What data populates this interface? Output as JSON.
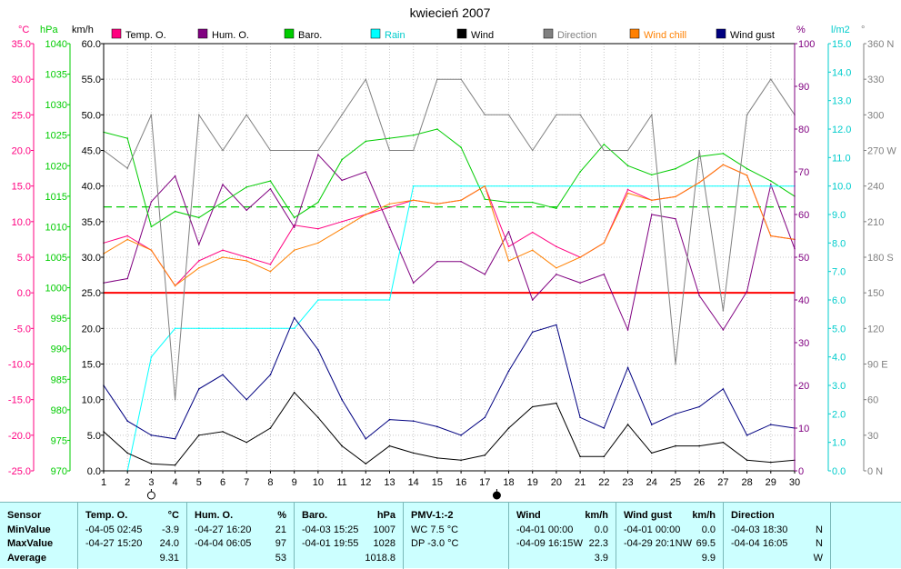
{
  "chart_data": {
    "type": "line",
    "title": "kwiecień 2007",
    "x": [
      1,
      2,
      3,
      4,
      5,
      6,
      7,
      8,
      9,
      10,
      11,
      12,
      13,
      14,
      15,
      16,
      17,
      18,
      19,
      20,
      21,
      22,
      23,
      24,
      25,
      26,
      27,
      28,
      29,
      30
    ],
    "axes": {
      "temp": {
        "label": "°C",
        "ticks": [
          "35.0",
          "30.0",
          "25.0",
          "20.0",
          "15.0",
          "10.0",
          "5.0",
          "0.0",
          "-5.0",
          "-10.0",
          "-15.0",
          "-20.0",
          "-25.0"
        ],
        "ylim": [
          -25,
          35
        ]
      },
      "baro": {
        "label": "hPa",
        "ticks": [
          "1040",
          "1035",
          "1030",
          "1025",
          "1020",
          "1015",
          "1010",
          "1005",
          "1000",
          "995",
          "990",
          "985",
          "980",
          "975",
          "970"
        ],
        "ylim": [
          970,
          1040
        ]
      },
      "wind": {
        "label": "km/h",
        "ticks": [
          "60.0",
          "55.0",
          "50.0",
          "45.0",
          "40.0",
          "35.0",
          "30.0",
          "25.0",
          "20.0",
          "15.0",
          "10.0",
          "5.0",
          "0.0"
        ],
        "ylim": [
          0,
          60
        ]
      },
      "hum": {
        "label": "%",
        "ticks": [
          "100",
          "90",
          "80",
          "70",
          "60",
          "50",
          "40",
          "30",
          "20",
          "10",
          "0"
        ],
        "ylim": [
          0,
          100
        ]
      },
      "rain": {
        "label": "l/m2",
        "ticks": [
          "15.0",
          "14.0",
          "13.0",
          "12.0",
          "11.0",
          "10.0",
          "9.0",
          "8.0",
          "7.0",
          "6.0",
          "5.0",
          "4.0",
          "3.0",
          "2.0",
          "1.0",
          "0.0"
        ],
        "ylim": [
          0,
          15
        ]
      },
      "dir": {
        "label": "°",
        "ticks": [
          "360 N",
          "330",
          "300",
          "270 W",
          "240",
          "210",
          "180 S",
          "150",
          "120",
          "90 E",
          "60",
          "30",
          "0 N"
        ],
        "ylim": [
          0,
          360
        ]
      }
    },
    "moon_phases": [
      {
        "day": 3,
        "phase": "full"
      },
      {
        "day": 17.5,
        "phase": "new"
      }
    ],
    "series": [
      {
        "name": "Temp. O.",
        "axis": "temp",
        "color": "#ff0080",
        "values": [
          7.0,
          8.0,
          6.0,
          1.0,
          4.5,
          6.0,
          5.0,
          4.0,
          9.5,
          9.0,
          10.0,
          11.0,
          12.0,
          13.0,
          12.5,
          13.0,
          15.0,
          6.5,
          8.5,
          6.5,
          5.0,
          7.0,
          14.5,
          13.0,
          13.5,
          15.5,
          18.0,
          16.5,
          8.0,
          7.5
        ]
      },
      {
        "name": "Hum. O.",
        "axis": "hum",
        "color": "#800080",
        "values": [
          44,
          45,
          63,
          69,
          53,
          67,
          61,
          66,
          57,
          74,
          68,
          70,
          57,
          44,
          49,
          49,
          46,
          56,
          40,
          46,
          44,
          46,
          33,
          60,
          59,
          41,
          33,
          42,
          67,
          52
        ]
      },
      {
        "name": "Baro.",
        "axis": "baro",
        "color": "#00cc00",
        "values": [
          1025.5,
          1024.5,
          1010.0,
          1012.5,
          1011.5,
          1014.0,
          1016.5,
          1017.5,
          1011.5,
          1014.0,
          1021.0,
          1024.0,
          1024.5,
          1025.0,
          1026.0,
          1023.0,
          1014.5,
          1014.0,
          1014.0,
          1013.0,
          1019.0,
          1023.5,
          1020.0,
          1018.5,
          1019.5,
          1021.5,
          1022.0,
          1019.5,
          1017.5,
          1015.0
        ]
      },
      {
        "name": "Rain",
        "axis": "rain",
        "color": "#00ffff",
        "values": [
          0.0,
          0.0,
          4.0,
          5.0,
          5.0,
          5.0,
          5.0,
          5.0,
          5.0,
          6.0,
          6.0,
          6.0,
          6.0,
          10.0,
          10.0,
          10.0,
          10.0,
          10.0,
          10.0,
          10.0,
          10.0,
          10.0,
          10.0,
          10.0,
          10.0,
          10.0,
          10.0,
          10.0,
          10.0,
          10.0
        ]
      },
      {
        "name": "Wind",
        "axis": "wind",
        "color": "#000000",
        "values": [
          5.5,
          2.5,
          1.0,
          0.8,
          5.0,
          5.5,
          4.0,
          6.0,
          11.0,
          7.5,
          3.5,
          1.0,
          3.5,
          2.5,
          1.8,
          1.5,
          2.2,
          6.0,
          9.0,
          9.5,
          2.0,
          2.0,
          6.5,
          2.5,
          3.5,
          3.5,
          4.0,
          1.5,
          1.2,
          1.5
        ]
      },
      {
        "name": "Direction",
        "axis": "dir",
        "color": "#808080",
        "values": [
          270,
          255,
          300,
          60,
          300,
          270,
          300,
          270,
          270,
          270,
          300,
          330,
          270,
          270,
          330,
          330,
          300,
          300,
          270,
          300,
          300,
          270,
          270,
          300,
          90,
          270,
          135,
          300,
          330,
          300
        ]
      },
      {
        "name": "Wind chill",
        "axis": "temp",
        "color": "#ff8000",
        "values": [
          5.5,
          7.5,
          6.0,
          1.0,
          3.5,
          5.0,
          4.5,
          3.0,
          6.0,
          7.0,
          9.0,
          11.0,
          12.5,
          13.0,
          12.5,
          13.0,
          15.0,
          4.5,
          6.0,
          3.5,
          5.0,
          7.0,
          14.0,
          13.0,
          13.5,
          15.5,
          18.0,
          16.5,
          8.0,
          7.5
        ]
      },
      {
        "name": "Wind gust",
        "axis": "wind",
        "color": "#000080",
        "values": [
          12.0,
          7.0,
          5.0,
          4.5,
          11.5,
          13.5,
          10.0,
          13.5,
          21.5,
          17.0,
          10.0,
          4.5,
          7.2,
          7.0,
          6.2,
          5.0,
          7.5,
          14.0,
          19.5,
          20.5,
          7.5,
          6.0,
          14.5,
          6.5,
          8.0,
          9.0,
          11.5,
          5.0,
          6.5,
          6.0
        ]
      }
    ],
    "reference_lines": [
      {
        "axis": "temp",
        "value": 0.0,
        "color": "#ff0000",
        "style": "solid"
      },
      {
        "axis": "baro",
        "value": 1013.25,
        "color": "#00cc00",
        "style": "dashed"
      }
    ],
    "grid": true,
    "legend": "top"
  },
  "stats": {
    "headers": {
      "sensor": "Sensor",
      "temp": {
        "name": "Temp. O.",
        "unit": "°C"
      },
      "hum": {
        "name": "Hum. O.",
        "unit": "%"
      },
      "baro": {
        "name": "Baro.",
        "unit": "hPa"
      },
      "pmv": {
        "name": "PMV-1:-2"
      },
      "wind": {
        "name": "Wind",
        "unit": "km/h"
      },
      "gust": {
        "name": "Wind gust",
        "unit": "km/h"
      },
      "dir": {
        "name": "Direction"
      }
    },
    "rows": {
      "min": {
        "label": "MinValue",
        "temp_date": "-04-05  02:45",
        "temp_val": "-3.9",
        "hum_date": "-04-27  16:20",
        "hum_val": "21",
        "baro_date": "-04-03  15:25",
        "baro_val": "1007",
        "pmv": "WC 7.5 °C",
        "wind_date": "-04-01  00:00",
        "wind_val": "0.0",
        "gust_date": "-04-01  00:00",
        "gust_val": "0.0",
        "dir_date": "-04-03  18:30",
        "dir_val": "N"
      },
      "max": {
        "label": "MaxValue",
        "temp_date": "-04-27  15:20",
        "temp_val": "24.0",
        "hum_date": "-04-04  06:05",
        "hum_val": "97",
        "baro_date": "-04-01  19:55",
        "baro_val": "1028",
        "pmv": "DP -3.0 °C",
        "wind_date": "-04-09  16:15",
        "wind_dir": "W",
        "wind_val": "22.3",
        "gust_date": "-04-29  20:1",
        "gust_dir": "NW",
        "gust_val": "69.5",
        "dir_date": "-04-04  16:05",
        "dir_val": "N"
      },
      "avg": {
        "label": "Average",
        "temp_val": "9.31",
        "hum_val": "53",
        "baro_val": "1018.8",
        "wind_val": "3.9",
        "gust_val": "9.9",
        "dir_val": "W"
      }
    }
  }
}
